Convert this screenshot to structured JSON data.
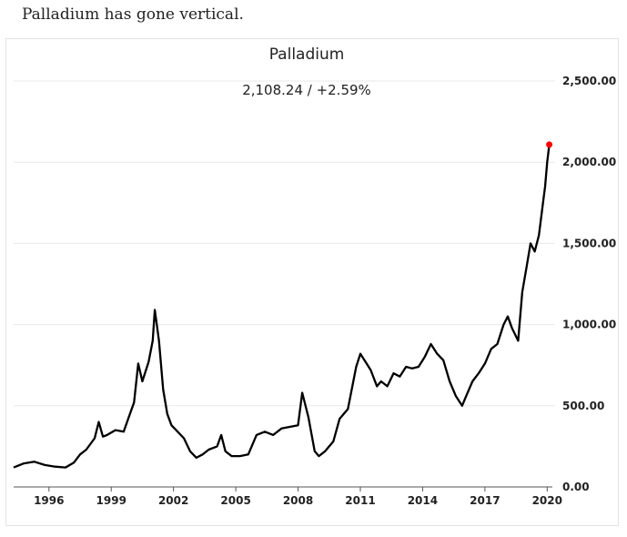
{
  "caption": "Palladium has gone vertical.",
  "chart_data": {
    "type": "line",
    "title": "Palladium",
    "readout": "2,108.24  /  +2.59%",
    "last_value": 2108.24,
    "change_pct": "+2.59%",
    "xlabel": "",
    "ylabel": "",
    "ylim": [
      0,
      2500
    ],
    "xlim": [
      1994.3,
      2020.25
    ],
    "y_ticks": [
      0,
      500,
      1000,
      1500,
      2000,
      2500
    ],
    "y_tick_labels": [
      "0.00",
      "500.00",
      "1,000.00",
      "1,500.00",
      "2,000.00",
      "2,500.00"
    ],
    "x_ticks": [
      1996,
      1999,
      2002,
      2005,
      2008,
      2011,
      2014,
      2017,
      2020
    ],
    "x_tick_labels": [
      "1996",
      "1999",
      "2002",
      "2005",
      "2008",
      "2011",
      "2014",
      "2017",
      "2020"
    ],
    "grid": true,
    "line_color": "#000000",
    "marker_color": "#ff0000",
    "series": [
      {
        "name": "Palladium",
        "x": [
          1994.3,
          1994.8,
          1995.3,
          1995.8,
          1996.3,
          1996.8,
          1997.2,
          1997.5,
          1997.8,
          1998.2,
          1998.4,
          1998.6,
          1998.8,
          1999.2,
          1999.6,
          1999.9,
          2000.1,
          2000.3,
          2000.5,
          2000.8,
          2001.0,
          2001.1,
          2001.3,
          2001.5,
          2001.7,
          2001.9,
          2002.2,
          2002.5,
          2002.8,
          2003.1,
          2003.4,
          2003.7,
          2004.1,
          2004.3,
          2004.5,
          2004.8,
          2005.2,
          2005.6,
          2006.0,
          2006.4,
          2006.8,
          2007.2,
          2007.6,
          2008.0,
          2008.2,
          2008.5,
          2008.8,
          2009.0,
          2009.3,
          2009.7,
          2010.0,
          2010.4,
          2010.8,
          2011.0,
          2011.2,
          2011.5,
          2011.8,
          2012.0,
          2012.3,
          2012.6,
          2012.9,
          2013.2,
          2013.5,
          2013.8,
          2014.1,
          2014.4,
          2014.7,
          2015.0,
          2015.3,
          2015.6,
          2015.9,
          2016.1,
          2016.4,
          2016.7,
          2017.0,
          2017.3,
          2017.6,
          2017.9,
          2018.1,
          2018.3,
          2018.6,
          2018.8,
          2019.0,
          2019.2,
          2019.4,
          2019.6,
          2019.8,
          2019.9,
          2020.0,
          2020.1
        ],
        "y": [
          120,
          145,
          155,
          135,
          125,
          120,
          150,
          200,
          230,
          300,
          400,
          310,
          320,
          350,
          340,
          450,
          520,
          760,
          650,
          770,
          900,
          1090,
          900,
          600,
          450,
          380,
          340,
          300,
          220,
          180,
          200,
          230,
          250,
          320,
          220,
          190,
          190,
          200,
          320,
          340,
          320,
          360,
          370,
          380,
          580,
          430,
          220,
          190,
          220,
          280,
          420,
          480,
          740,
          820,
          780,
          720,
          620,
          650,
          620,
          700,
          680,
          740,
          730,
          740,
          800,
          880,
          820,
          780,
          650,
          560,
          500,
          560,
          650,
          700,
          760,
          850,
          880,
          1000,
          1050,
          980,
          900,
          1200,
          1350,
          1500,
          1450,
          1550,
          1750,
          1850,
          2000,
          2108.24
        ]
      }
    ]
  }
}
